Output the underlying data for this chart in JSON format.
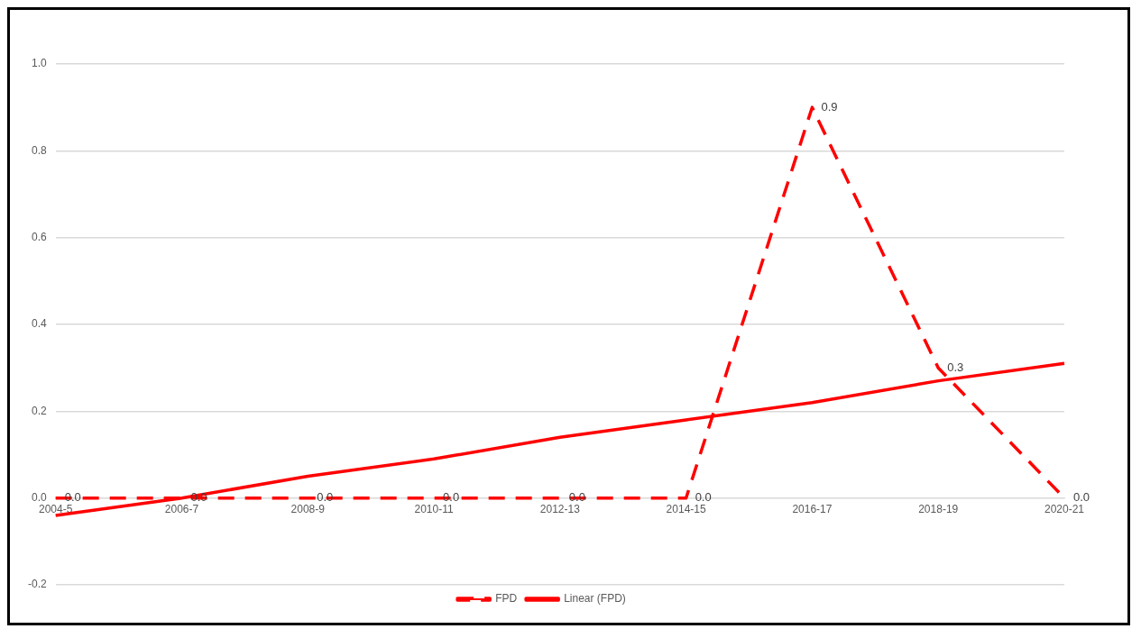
{
  "chart_data": {
    "type": "line",
    "categories": [
      "2004-5",
      "2006-7",
      "2008-9",
      "2010-11",
      "2012-13",
      "2014-15",
      "2016-17",
      "2018-19",
      "2020-21"
    ],
    "series": [
      {
        "name": "FPD",
        "color": "#ff0000",
        "line_style": "dashed",
        "values": [
          0,
          0,
          0,
          0,
          0,
          0,
          0.9,
          0.3,
          0
        ],
        "value_labels": [
          "0.0",
          "0.0",
          "0.0",
          "0.0",
          "0.0",
          "0.0",
          "0.9",
          "0.3",
          "0.0"
        ]
      },
      {
        "name": "Linear (FPD)",
        "color": "#ff0000",
        "line_style": "solid",
        "values": [
          -0.04,
          0.0,
          0.05,
          0.09,
          0.14,
          0.18,
          0.22,
          0.27,
          0.31
        ]
      }
    ],
    "ylim": [
      -0.2,
      1.0
    ],
    "yticks": [
      -0.2,
      {
        "value": 0,
        "label": "0.0"
      },
      0.2,
      0.4,
      0.6,
      0.8,
      {
        "value": 1,
        "label": "1.0"
      }
    ],
    "grid": "y",
    "legend": "bottom",
    "marker": "none"
  }
}
